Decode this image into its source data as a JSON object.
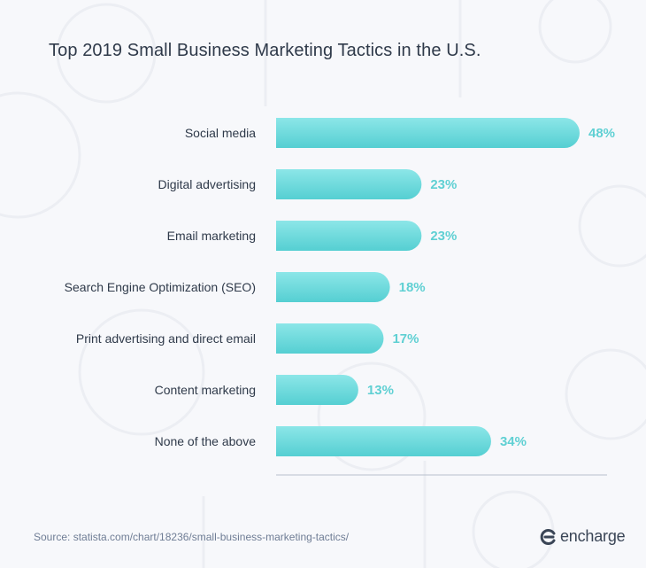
{
  "title": "Top 2019 Small Business Marketing Tactics in the U.S.",
  "source": "Source: statista.com/chart/18236/small-business-marketing-tactics/",
  "brand": {
    "name": "encharge",
    "icon": "encharge-logo-icon"
  },
  "colors": {
    "bar_top": "#8ce6e8",
    "bar_bottom": "#55cfd2",
    "value_text": "#5fd0d3",
    "label_text": "#2f3a4a",
    "axis": "#b9c0cc"
  },
  "chart_data": {
    "type": "bar",
    "orientation": "horizontal",
    "title": "Top 2019 Small Business Marketing Tactics in the U.S.",
    "xlabel": "",
    "ylabel": "",
    "unit": "%",
    "xlim": [
      0,
      100
    ],
    "grid": false,
    "legend": "none",
    "categories": [
      "Social media",
      "Digital advertising",
      "Email marketing",
      "Search Engine Optimization (SEO)",
      "Print advertising and direct email",
      "Content marketing",
      "None of the above"
    ],
    "values": [
      48,
      23,
      23,
      18,
      17,
      13,
      34
    ],
    "value_labels": [
      "48%",
      "23%",
      "23%",
      "18%",
      "17%",
      "13%",
      "34%"
    ]
  }
}
